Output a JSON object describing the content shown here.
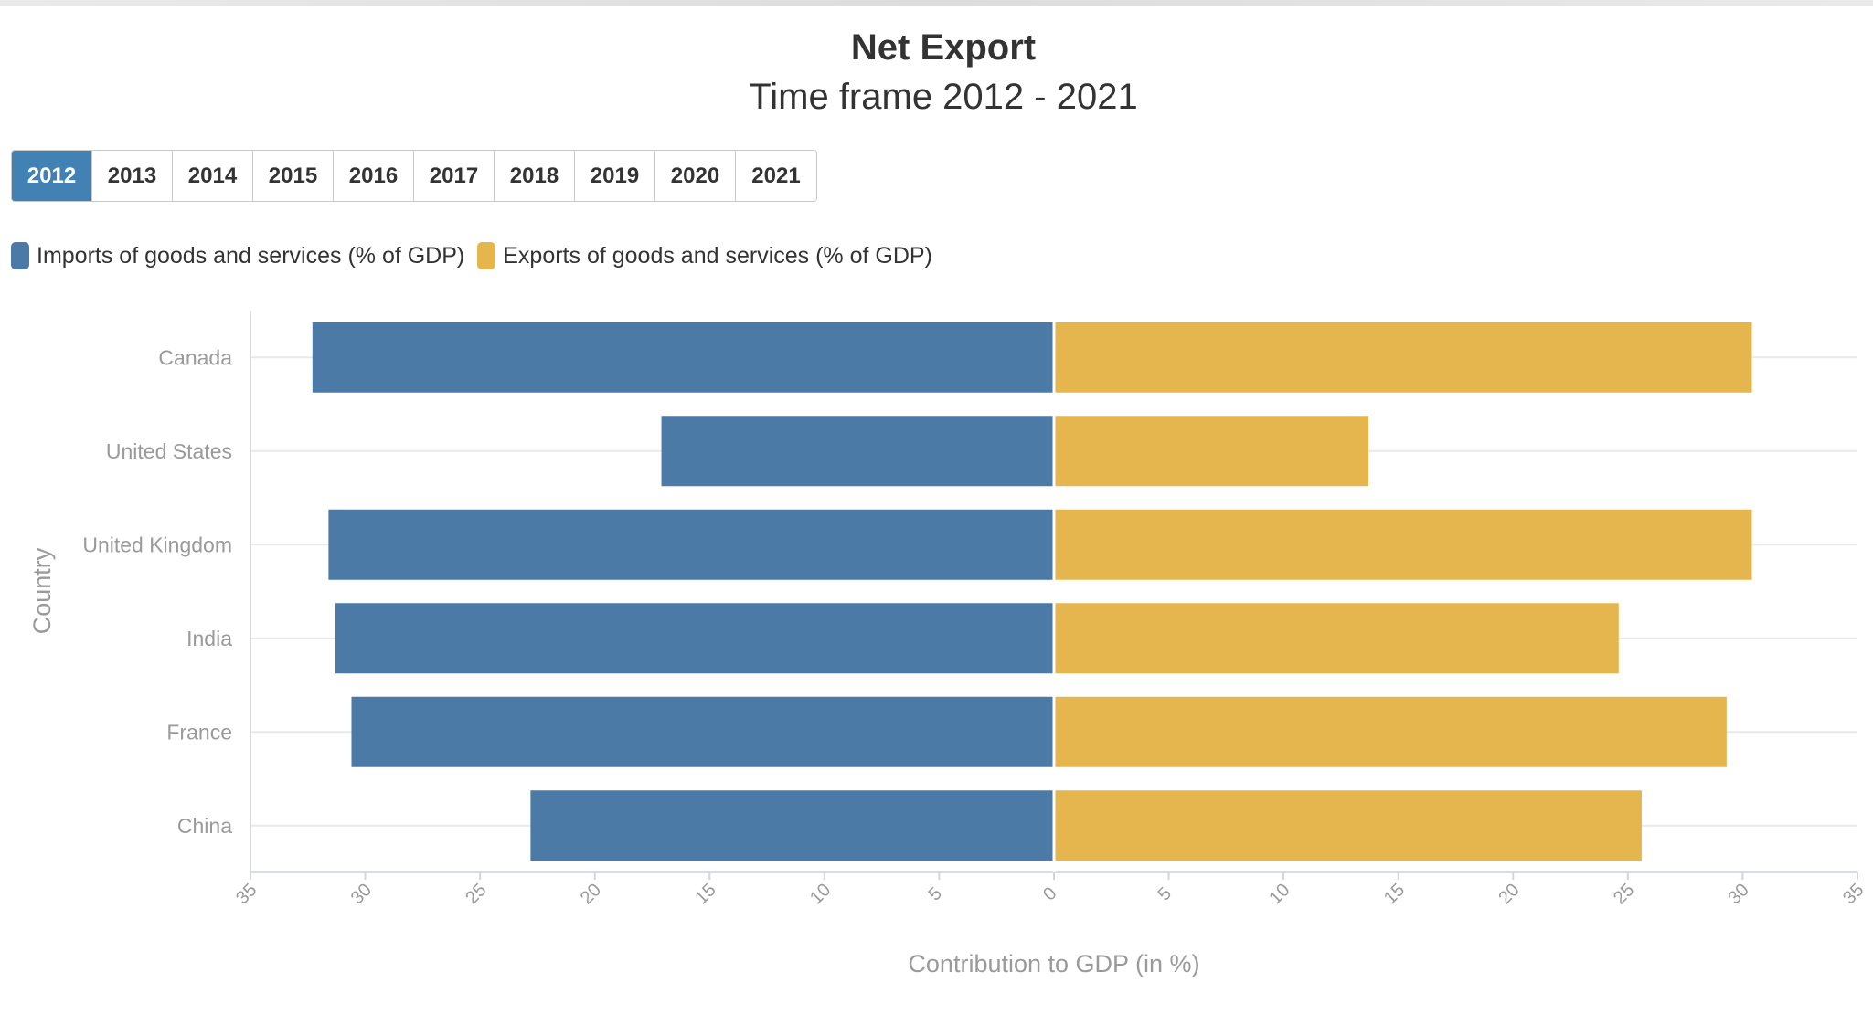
{
  "header": {
    "title": "Net Export",
    "subtitle": "Time frame 2012 - 2021"
  },
  "year_selector": {
    "years": [
      "2012",
      "2013",
      "2014",
      "2015",
      "2016",
      "2017",
      "2018",
      "2019",
      "2020",
      "2021"
    ],
    "selected": "2012"
  },
  "legend": {
    "items": [
      {
        "label": "Imports of goods and services (% of GDP)",
        "color": "#4a7aa5"
      },
      {
        "label": "Exports of goods and services (% of GDP)",
        "color": "#e5b64e"
      }
    ]
  },
  "chart_data": {
    "type": "bar",
    "orientation": "horizontal",
    "layout": "diverging",
    "title": "Net Export",
    "subtitle": "Time frame 2012 - 2021",
    "xlabel": "Contribution to GDP (in %)",
    "ylabel": "Country",
    "categories": [
      "Canada",
      "United States",
      "United Kingdom",
      "India",
      "France",
      "China"
    ],
    "series": [
      {
        "name": "Imports of goods and services (% of GDP)",
        "side": "left",
        "color": "#4a7aa5",
        "values": [
          32.3,
          17.1,
          31.6,
          31.3,
          30.6,
          22.8
        ]
      },
      {
        "name": "Exports of goods and services (% of GDP)",
        "side": "right",
        "color": "#e5b64e",
        "values": [
          30.4,
          13.7,
          30.4,
          24.6,
          29.3,
          25.6
        ]
      }
    ],
    "xlim": [
      -35,
      35
    ],
    "xticks": [
      "35",
      "30",
      "25",
      "20",
      "15",
      "10",
      "5",
      "0",
      "5",
      "10",
      "15",
      "20",
      "25",
      "30",
      "35"
    ],
    "grid": "horizontal",
    "legend_position": "top-left"
  }
}
